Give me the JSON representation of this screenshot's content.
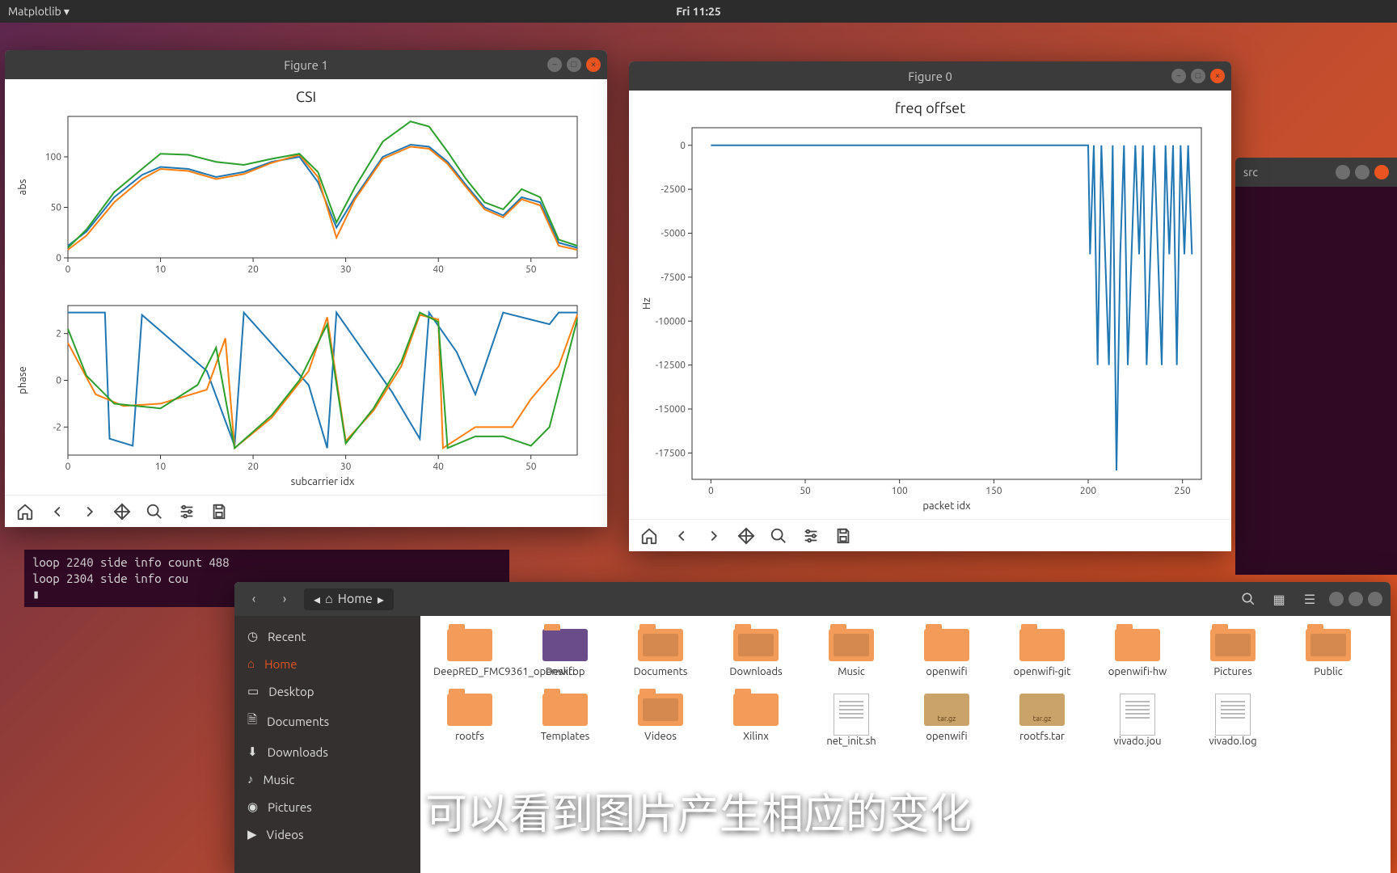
{
  "topbar": {
    "app": "Matplotlib ▾",
    "clock": "Fri 11:25"
  },
  "bg_terminal": {
    "title": "src"
  },
  "fig1": {
    "title": "Figure 1",
    "chart_title": "CSI",
    "top": {
      "ylabel": "abs",
      "xlim": [
        0,
        55
      ],
      "ylim": [
        0,
        140
      ],
      "xticks": [
        0,
        10,
        20,
        30,
        40,
        50
      ],
      "yticks": [
        0,
        50,
        100
      ],
      "series": [
        {
          "color": "#1f77b4",
          "data": [
            [
              0,
              12
            ],
            [
              2,
              26
            ],
            [
              5,
              60
            ],
            [
              8,
              82
            ],
            [
              10,
              90
            ],
            [
              13,
              88
            ],
            [
              16,
              80
            ],
            [
              19,
              85
            ],
            [
              22,
              95
            ],
            [
              25,
              100
            ],
            [
              27,
              75
            ],
            [
              29,
              30
            ],
            [
              31,
              60
            ],
            [
              34,
              100
            ],
            [
              37,
              112
            ],
            [
              39,
              110
            ],
            [
              41,
              95
            ],
            [
              43,
              72
            ],
            [
              45,
              50
            ],
            [
              47,
              42
            ],
            [
              49,
              60
            ],
            [
              51,
              55
            ],
            [
              53,
              15
            ],
            [
              55,
              10
            ]
          ]
        },
        {
          "color": "#ff7f0e",
          "data": [
            [
              0,
              8
            ],
            [
              2,
              22
            ],
            [
              5,
              55
            ],
            [
              8,
              78
            ],
            [
              10,
              88
            ],
            [
              13,
              86
            ],
            [
              16,
              78
            ],
            [
              19,
              83
            ],
            [
              22,
              94
            ],
            [
              25,
              102
            ],
            [
              27,
              80
            ],
            [
              29,
              20
            ],
            [
              31,
              58
            ],
            [
              34,
              98
            ],
            [
              37,
              110
            ],
            [
              39,
              108
            ],
            [
              41,
              93
            ],
            [
              43,
              70
            ],
            [
              45,
              48
            ],
            [
              47,
              40
            ],
            [
              49,
              58
            ],
            [
              51,
              52
            ],
            [
              53,
              12
            ],
            [
              55,
              8
            ]
          ]
        },
        {
          "color": "#2ca02c",
          "data": [
            [
              0,
              10
            ],
            [
              2,
              28
            ],
            [
              5,
              65
            ],
            [
              8,
              88
            ],
            [
              10,
              103
            ],
            [
              13,
              102
            ],
            [
              16,
              95
            ],
            [
              19,
              92
            ],
            [
              22,
              98
            ],
            [
              25,
              103
            ],
            [
              27,
              85
            ],
            [
              29,
              35
            ],
            [
              31,
              70
            ],
            [
              34,
              115
            ],
            [
              37,
              135
            ],
            [
              39,
              130
            ],
            [
              41,
              105
            ],
            [
              43,
              78
            ],
            [
              45,
              55
            ],
            [
              47,
              48
            ],
            [
              49,
              68
            ],
            [
              51,
              60
            ],
            [
              53,
              18
            ],
            [
              55,
              12
            ]
          ]
        }
      ]
    },
    "bottom": {
      "ylabel": "phase",
      "xlabel": "subcarrier idx",
      "xlim": [
        0,
        55
      ],
      "ylim": [
        -3.2,
        3.2
      ],
      "xticks": [
        0,
        10,
        20,
        30,
        40,
        50
      ],
      "yticks": [
        -2,
        0,
        2
      ],
      "series": [
        {
          "color": "#1f77b4",
          "data": [
            [
              0,
              2.9
            ],
            [
              3,
              2.9
            ],
            [
              4,
              2.9
            ],
            [
              4.5,
              -2.5
            ],
            [
              7,
              -2.8
            ],
            [
              8,
              2.8
            ],
            [
              15,
              0.4
            ],
            [
              18,
              -2.8
            ],
            [
              19,
              2.9
            ],
            [
              26,
              -0.2
            ],
            [
              28,
              -2.9
            ],
            [
              29,
              2.9
            ],
            [
              35,
              -0.5
            ],
            [
              38,
              -2.5
            ],
            [
              39,
              2.9
            ],
            [
              42,
              1.2
            ],
            [
              44,
              -0.6
            ],
            [
              47,
              2.9
            ],
            [
              50,
              2.6
            ],
            [
              52,
              2.4
            ],
            [
              53,
              2.9
            ],
            [
              55,
              2.9
            ]
          ]
        },
        {
          "color": "#ff7f0e",
          "data": [
            [
              0,
              1.6
            ],
            [
              3,
              -0.6
            ],
            [
              6,
              -1.1
            ],
            [
              10,
              -1.0
            ],
            [
              15,
              -0.4
            ],
            [
              17,
              1.8
            ],
            [
              18,
              -2.9
            ],
            [
              22,
              -1.6
            ],
            [
              26,
              0.4
            ],
            [
              28,
              2.7
            ],
            [
              30,
              -2.6
            ],
            [
              33,
              -1.3
            ],
            [
              36,
              0.6
            ],
            [
              38,
              2.8
            ],
            [
              40,
              2.6
            ],
            [
              40.5,
              -2.9
            ],
            [
              44,
              -2.0
            ],
            [
              48,
              -2.0
            ],
            [
              50,
              -0.8
            ],
            [
              53,
              0.6
            ],
            [
              55,
              2.8
            ]
          ]
        },
        {
          "color": "#2ca02c",
          "data": [
            [
              0,
              2.2
            ],
            [
              2,
              0.2
            ],
            [
              5,
              -1.0
            ],
            [
              10,
              -1.2
            ],
            [
              14,
              -0.2
            ],
            [
              16,
              1.4
            ],
            [
              18,
              -2.9
            ],
            [
              22,
              -1.5
            ],
            [
              25,
              0.0
            ],
            [
              28,
              2.4
            ],
            [
              30,
              -2.7
            ],
            [
              33,
              -1.2
            ],
            [
              36,
              0.8
            ],
            [
              38,
              2.9
            ],
            [
              40,
              2.5
            ],
            [
              41,
              -2.9
            ],
            [
              44,
              -2.4
            ],
            [
              47,
              -2.4
            ],
            [
              50,
              -2.8
            ],
            [
              52,
              -2.0
            ],
            [
              55,
              2.6
            ]
          ]
        }
      ]
    }
  },
  "fig0": {
    "title": "Figure 0",
    "chart_title": "freq offset",
    "ylabel": "Hz",
    "xlabel": "packet idx",
    "xlim": [
      -10,
      260
    ],
    "ylim": [
      -19000,
      1000
    ],
    "xticks": [
      0,
      50,
      100,
      150,
      200,
      250
    ],
    "yticks": [
      0,
      -2500,
      -5000,
      -7500,
      -10000,
      -12500,
      -15000,
      -17500
    ],
    "color": "#1f77b4",
    "data": [
      [
        0,
        0
      ],
      [
        200,
        0
      ],
      [
        201,
        -6200
      ],
      [
        203,
        0
      ],
      [
        205,
        -12500
      ],
      [
        207,
        0
      ],
      [
        209,
        -6200
      ],
      [
        211,
        -12500
      ],
      [
        213,
        0
      ],
      [
        215,
        -18500
      ],
      [
        217,
        -6200
      ],
      [
        219,
        0
      ],
      [
        221,
        -12500
      ],
      [
        223,
        -6200
      ],
      [
        225,
        0
      ],
      [
        227,
        -6200
      ],
      [
        229,
        0
      ],
      [
        231,
        -12500
      ],
      [
        233,
        -6200
      ],
      [
        235,
        0
      ],
      [
        237,
        -6200
      ],
      [
        239,
        -12500
      ],
      [
        241,
        0
      ],
      [
        243,
        -6200
      ],
      [
        245,
        0
      ],
      [
        247,
        -12500
      ],
      [
        249,
        0
      ],
      [
        251,
        -6200
      ],
      [
        253,
        0
      ],
      [
        255,
        -6200
      ]
    ]
  },
  "terminal": {
    "lines": [
      "loop 2240 side info count 488",
      "loop 2304 side info cou"
    ],
    "cursor": "▮"
  },
  "files": {
    "path_label": "Home",
    "sidebar": [
      {
        "icon": "clock",
        "label": "Recent"
      },
      {
        "icon": "home",
        "label": "Home",
        "active": true
      },
      {
        "icon": "desktop",
        "label": "Desktop"
      },
      {
        "icon": "doc",
        "label": "Documents"
      },
      {
        "icon": "download",
        "label": "Downloads"
      },
      {
        "icon": "music",
        "label": "Music"
      },
      {
        "icon": "camera",
        "label": "Pictures"
      },
      {
        "icon": "video",
        "label": "Videos"
      }
    ],
    "items": [
      {
        "type": "folder",
        "label": "DeepRED_FMC9361_openwifi"
      },
      {
        "type": "desktop",
        "label": "Desktop"
      },
      {
        "type": "folder-doc",
        "label": "Documents"
      },
      {
        "type": "folder-dl",
        "label": "Downloads"
      },
      {
        "type": "folder-music",
        "label": "Music"
      },
      {
        "type": "folder",
        "label": "openwifi"
      },
      {
        "type": "folder",
        "label": "openwifi-git"
      },
      {
        "type": "folder",
        "label": "openwifi-hw"
      },
      {
        "type": "folder-pic",
        "label": "Pictures"
      },
      {
        "type": "folder-pub",
        "label": "Public"
      },
      {
        "type": "folder",
        "label": "rootfs"
      },
      {
        "type": "folder",
        "label": "Templates"
      },
      {
        "type": "folder-vid",
        "label": "Videos"
      },
      {
        "type": "folder",
        "label": "Xilinx"
      },
      {
        "type": "doc",
        "label": "net_init.sh"
      },
      {
        "type": "archive",
        "label": "openwifi"
      },
      {
        "type": "archive",
        "label": "rootfs.tar"
      },
      {
        "type": "doc",
        "label": "vivado.jou"
      },
      {
        "type": "doc",
        "label": "vivado.log"
      }
    ]
  },
  "subtitle": "可以看到图片产生相应的变化"
}
